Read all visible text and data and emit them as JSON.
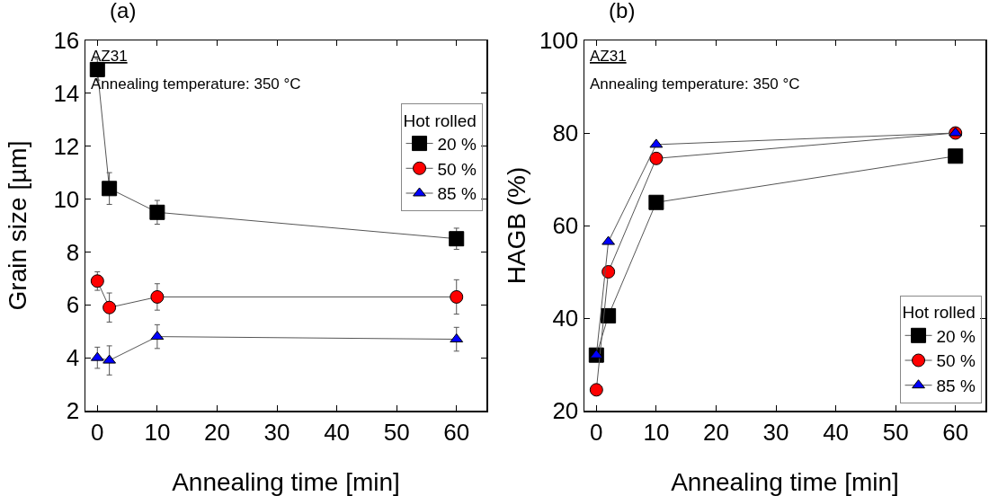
{
  "chart_data": [
    {
      "type": "line",
      "title": "(a)",
      "xlabel": "Annealing time [min]",
      "ylabel": "Grain size [µm]",
      "legend_title": "Hot rolled",
      "legend": "top right",
      "annotations": [
        "AZ31",
        "Annealing temperature: 350 °C"
      ],
      "x": [
        0,
        2,
        10,
        60
      ],
      "xlim": [
        -2,
        65
      ],
      "xticks": [
        0,
        10,
        20,
        30,
        40,
        50,
        60
      ],
      "ylim": [
        2,
        16
      ],
      "yticks": [
        2,
        4,
        6,
        8,
        10,
        12,
        14,
        16
      ],
      "grid": false,
      "series": [
        {
          "name": "20 %",
          "color": "#000000",
          "marker": "square",
          "values": [
            14.9,
            10.4,
            9.5,
            8.5
          ],
          "errors": [
            0.4,
            0.6,
            0.45,
            0.4
          ]
        },
        {
          "name": "50 %",
          "color": "#ff0000",
          "marker": "circle",
          "values": [
            6.9,
            5.9,
            6.3,
            6.3
          ],
          "errors": [
            0.35,
            0.55,
            0.5,
            0.65
          ]
        },
        {
          "name": "85 %",
          "color": "#0000ff",
          "marker": "triangle",
          "values": [
            4.0,
            3.9,
            4.8,
            4.7
          ],
          "errors": [
            0.4,
            0.55,
            0.45,
            0.45
          ]
        }
      ]
    },
    {
      "type": "line",
      "title": "(b)",
      "xlabel": "Annealing time [min]",
      "ylabel": "HAGB (%)",
      "legend_title": "Hot rolled",
      "legend": "bottom right",
      "annotations": [
        "AZ31",
        "Annealing temperature: 350 °C"
      ],
      "x": [
        0,
        2,
        10,
        60
      ],
      "xlim": [
        -2,
        65
      ],
      "xticks": [
        0,
        10,
        20,
        30,
        40,
        50,
        60
      ],
      "ylim": [
        20,
        100
      ],
      "yticks": [
        20,
        40,
        60,
        80,
        100
      ],
      "grid": false,
      "series": [
        {
          "name": "20 %",
          "color": "#000000",
          "marker": "square",
          "values": [
            32,
            40.5,
            65,
            75
          ]
        },
        {
          "name": "50 %",
          "color": "#ff0000",
          "marker": "circle",
          "values": [
            24.5,
            50,
            74.5,
            80
          ]
        },
        {
          "name": "85 %",
          "color": "#0000ff",
          "marker": "triangle",
          "values": [
            32,
            56.5,
            77.5,
            80
          ]
        }
      ]
    }
  ]
}
